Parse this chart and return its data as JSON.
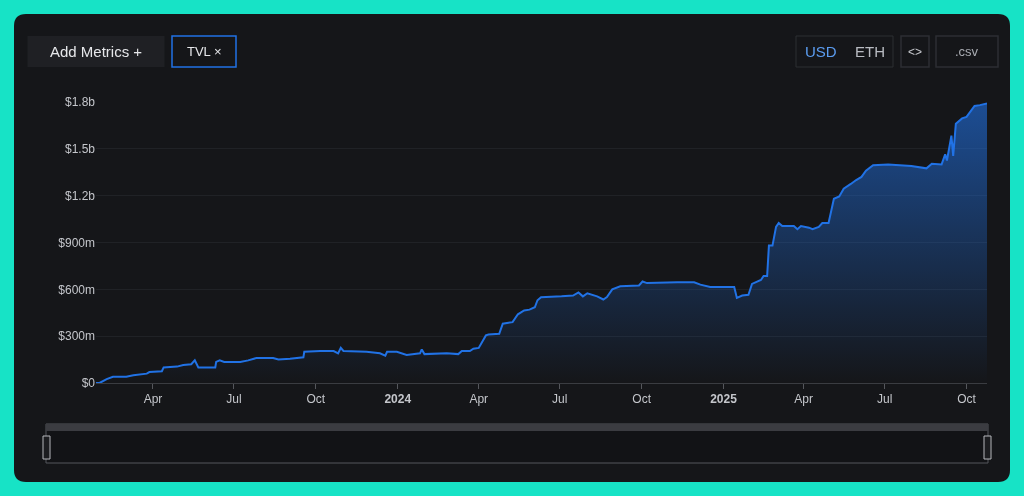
{
  "chart_data": {
    "type": "area",
    "x": [
      "2023-01-27",
      "2023-01-31",
      "2023-02-08",
      "2023-02-15",
      "2023-03-02",
      "2023-03-10",
      "2023-03-25",
      "2023-03-28",
      "2023-04-11",
      "2023-04-13",
      "2023-04-28",
      "2023-05-05",
      "2023-05-14",
      "2023-05-18",
      "2023-05-22",
      "2023-05-31",
      "2023-06-10",
      "2023-06-11",
      "2023-06-15",
      "2023-06-20",
      "2023-07-08",
      "2023-07-17",
      "2023-07-26",
      "2023-08-14",
      "2023-08-20",
      "2023-09-02",
      "2023-09-17",
      "2023-09-18",
      "2023-10-06",
      "2023-10-21",
      "2023-10-26",
      "2023-10-29",
      "2023-11-01",
      "2023-11-27",
      "2023-12-12",
      "2023-12-18",
      "2023-12-20",
      "2023-12-31",
      "2024-01-11",
      "2024-01-26",
      "2024-01-28",
      "2024-01-31",
      "2024-02-25",
      "2024-03-09",
      "2024-03-13",
      "2024-03-22",
      "2024-03-26",
      "2024-04-01",
      "2024-04-09",
      "2024-04-12",
      "2024-04-24",
      "2024-04-28",
      "2024-05-09",
      "2024-05-15",
      "2024-05-22",
      "2024-05-28",
      "2024-06-03",
      "2024-06-06",
      "2024-06-10",
      "2024-07-03",
      "2024-07-16",
      "2024-07-22",
      "2024-07-27",
      "2024-08-01",
      "2024-08-12",
      "2024-08-19",
      "2024-08-23",
      "2024-08-29",
      "2024-09-07",
      "2024-09-28",
      "2024-10-02",
      "2024-10-07",
      "2024-11-10",
      "2024-11-29",
      "2024-12-06",
      "2024-12-17",
      "2025-01-13",
      "2025-01-16",
      "2025-01-22",
      "2025-01-29",
      "2025-02-02",
      "2025-02-12",
      "2025-02-15",
      "2025-02-19",
      "2025-02-21",
      "2025-02-25",
      "2025-03-01",
      "2025-03-04",
      "2025-03-08",
      "2025-03-21",
      "2025-03-25",
      "2025-03-29",
      "2025-04-07",
      "2025-04-11",
      "2025-04-18",
      "2025-04-22",
      "2025-04-29",
      "2025-05-05",
      "2025-05-11",
      "2025-05-16",
      "2025-05-24",
      "2025-05-30",
      "2025-06-05",
      "2025-06-10",
      "2025-06-18",
      "2025-07-05",
      "2025-07-31",
      "2025-08-17",
      "2025-08-23",
      "2025-09-03",
      "2025-09-07",
      "2025-09-09",
      "2025-09-14",
      "2025-09-16",
      "2025-09-19",
      "2025-09-26",
      "2025-10-01",
      "2025-10-10",
      "2025-10-16",
      "2025-10-24"
    ],
    "series": [
      {
        "color": "#2172e5",
        "values": [
          0,
          0,
          25000000,
          40000000,
          40000000,
          50000000,
          60000000,
          70000000,
          75000000,
          100000000,
          105000000,
          115000000,
          120000000,
          145000000,
          100000000,
          100000000,
          100000000,
          135000000,
          145000000,
          135000000,
          135000000,
          145000000,
          160000000,
          160000000,
          150000000,
          155000000,
          165000000,
          200000000,
          205000000,
          205000000,
          190000000,
          225000000,
          205000000,
          200000000,
          190000000,
          175000000,
          200000000,
          200000000,
          180000000,
          190000000,
          215000000,
          185000000,
          190000000,
          185000000,
          205000000,
          205000000,
          220000000,
          225000000,
          305000000,
          310000000,
          315000000,
          380000000,
          390000000,
          440000000,
          465000000,
          470000000,
          485000000,
          530000000,
          550000000,
          555000000,
          560000000,
          580000000,
          555000000,
          575000000,
          555000000,
          535000000,
          550000000,
          600000000,
          620000000,
          625000000,
          650000000,
          640000000,
          645000000,
          645000000,
          630000000,
          615000000,
          615000000,
          545000000,
          560000000,
          565000000,
          635000000,
          660000000,
          685000000,
          685000000,
          880000000,
          880000000,
          1000000000,
          1025000000,
          1005000000,
          1005000000,
          985000000,
          1005000000,
          995000000,
          985000000,
          1000000000,
          1025000000,
          1025000000,
          1180000000,
          1195000000,
          1245000000,
          1275000000,
          1300000000,
          1320000000,
          1360000000,
          1395000000,
          1400000000,
          1390000000,
          1375000000,
          1405000000,
          1400000000,
          1465000000,
          1425000000,
          1585000000,
          1455000000,
          1660000000,
          1695000000,
          1705000000,
          1775000000,
          1780000000,
          1790000000
        ]
      }
    ],
    "xlim": [
      "2023-01-27",
      "2025-10-24"
    ],
    "xticks": [
      {
        "value": "2023-04-01",
        "label": "Apr"
      },
      {
        "value": "2023-07-01",
        "label": "Jul"
      },
      {
        "value": "2023-10-01",
        "label": "Oct"
      },
      {
        "value": "2024-01-01",
        "label": "2024"
      },
      {
        "value": "2024-04-01",
        "label": "Apr"
      },
      {
        "value": "2024-07-01",
        "label": "Jul"
      },
      {
        "value": "2024-10-01",
        "label": "Oct"
      },
      {
        "value": "2025-01-01",
        "label": "2025"
      },
      {
        "value": "2025-04-01",
        "label": "Apr"
      },
      {
        "value": "2025-07-01",
        "label": "Jul"
      },
      {
        "value": "2025-10-01",
        "label": "Oct"
      }
    ],
    "ylim": [
      0,
      1800000000
    ],
    "yticks": [
      {
        "value": 0,
        "label": "$0"
      },
      {
        "value": 300000000,
        "label": "$300m"
      },
      {
        "value": 600000000,
        "label": "$600m"
      },
      {
        "value": 900000000,
        "label": "$900m"
      },
      {
        "value": 1200000000,
        "label": "$1.2b"
      },
      {
        "value": 1500000000,
        "label": "$1.5b"
      },
      {
        "value": 1800000000,
        "label": "$1.8b"
      }
    ],
    "grid": "y",
    "annotations": [
      "Add Metrics +",
      "TVL ×",
      "USD",
      "ETH",
      "<>",
      ".csv"
    ]
  }
}
